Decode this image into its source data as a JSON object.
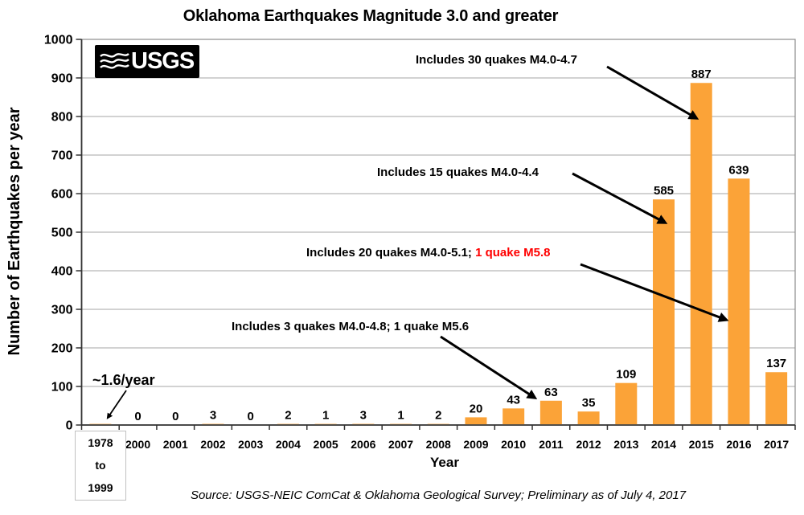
{
  "header": {
    "title": "Oklahoma Earthquakes Magnitude 3.0 and greater"
  },
  "logo": {
    "text": "USGS"
  },
  "chart_data": {
    "type": "bar",
    "title": "Oklahoma Earthquakes Magnitude 3.0 and greater",
    "xlabel": "Year",
    "ylabel": "Number of Earthquakes per year",
    "ylim": [
      0,
      1000
    ],
    "y_ticks": [
      0,
      100,
      200,
      300,
      400,
      500,
      600,
      700,
      800,
      900,
      1000
    ],
    "grid": true,
    "legend": "none",
    "bar_color": "#FBA338",
    "categories": [
      "1978 to 1999",
      "2000",
      "2001",
      "2002",
      "2003",
      "2004",
      "2005",
      "2006",
      "2007",
      "2008",
      "2009",
      "2010",
      "2011",
      "2012",
      "2013",
      "2014",
      "2015",
      "2016",
      "2017"
    ],
    "values": [
      1.6,
      0,
      0,
      3,
      0,
      2,
      1,
      3,
      1,
      2,
      20,
      43,
      63,
      35,
      109,
      585,
      887,
      639,
      137
    ],
    "bar_labels": [
      "",
      "0",
      "0",
      "3",
      "0",
      "2",
      "1",
      "3",
      "1",
      "2",
      "20",
      "43",
      "63",
      "35",
      "109",
      "585",
      "887",
      "639",
      "137"
    ],
    "annotations": [
      {
        "text": "Includes 30 quakes M4.0-4.7",
        "target_year": "2015"
      },
      {
        "text": "Includes 15 quakes M4.0-4.4",
        "target_year": "2014"
      },
      {
        "text": "Includes 20 quakes M4.0-5.1; ",
        "text_red": "1 quake M5.8",
        "target_year": "2016"
      },
      {
        "text": "Includes 3 quakes M4.0-4.8; 1 quake M5.6",
        "target_year": "2011"
      },
      {
        "text": "~1.6/year",
        "target_year": "1978 to 1999"
      }
    ]
  },
  "x_axis": {
    "box_label": {
      "line1": "1978",
      "line2": "to",
      "line3": "1999"
    }
  },
  "footer": {
    "source": "Source: USGS-NEIC ComCat & Oklahoma Geological Survey; Preliminary as of July 4, 2017"
  },
  "colors": {
    "bar": "#FBA338",
    "annotation_red": "#FF0000",
    "gridline": "#A6A6A6",
    "plot_border": "#8C8C8C",
    "axis_line": "#333333",
    "box_border": "#C0C0C0"
  }
}
